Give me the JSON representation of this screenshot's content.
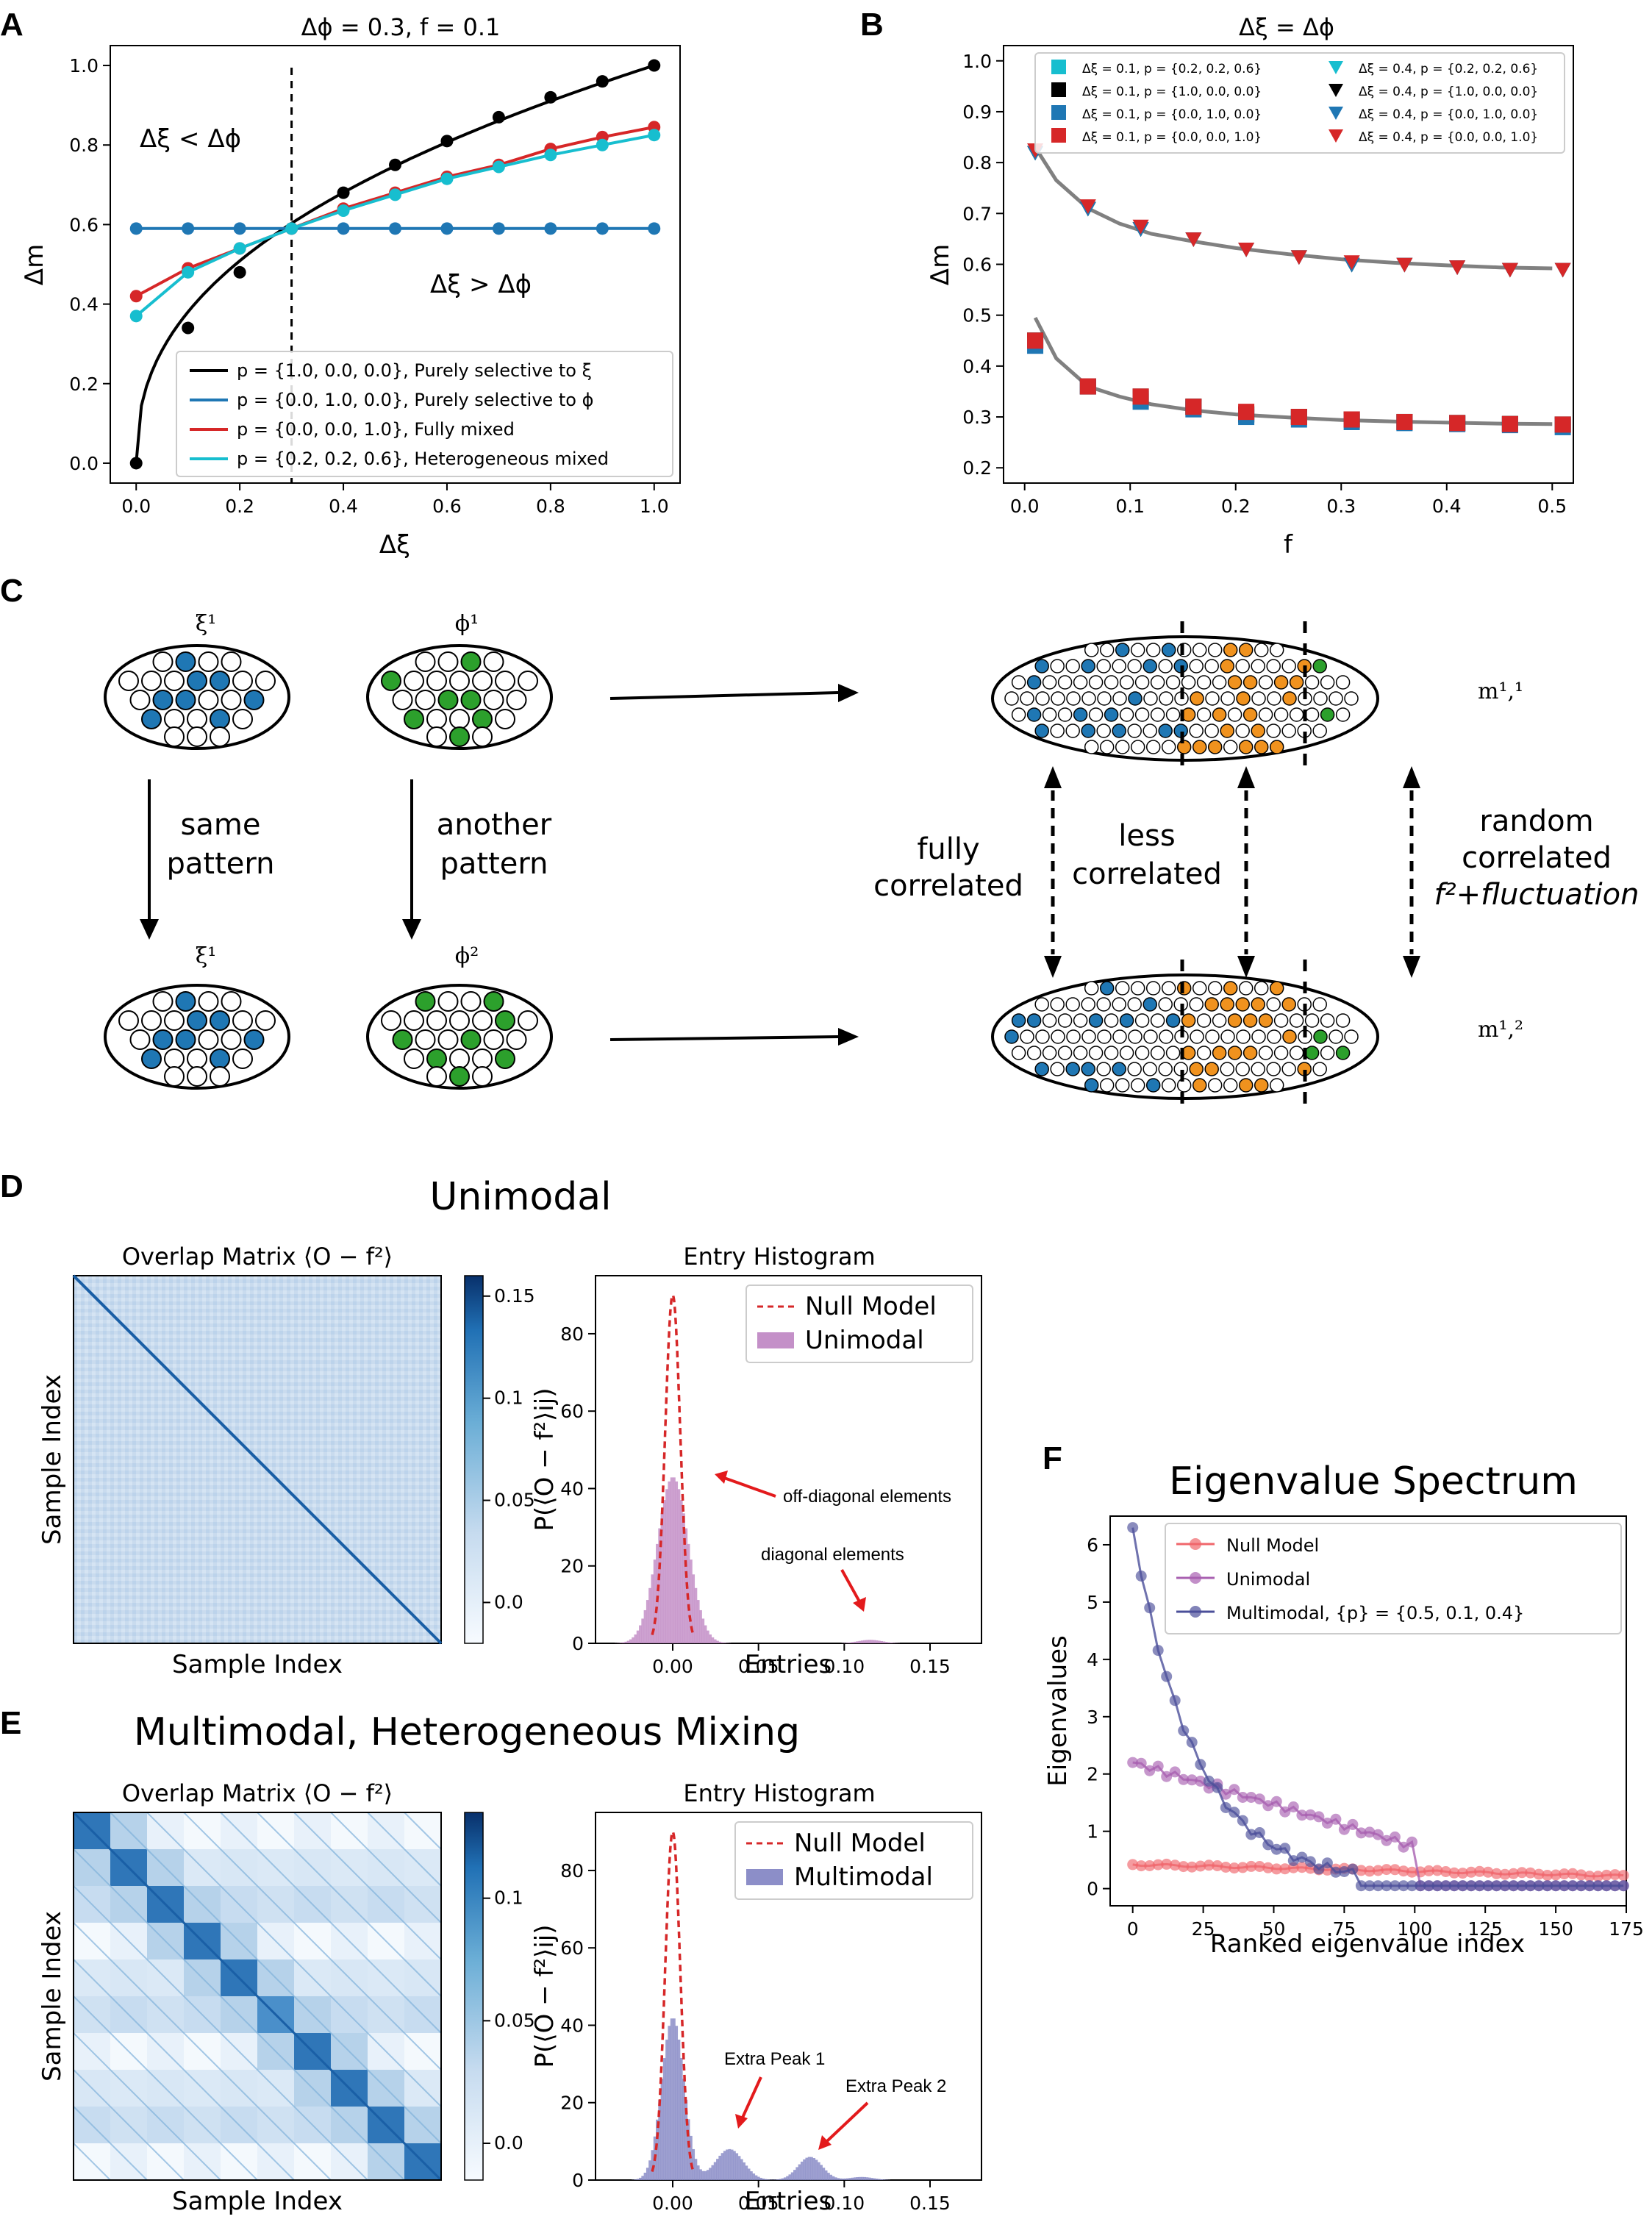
{
  "panels": {
    "A": "A",
    "B": "B",
    "C": "C",
    "D": "D",
    "E": "E",
    "F": "F"
  },
  "chart_data": [
    {
      "id": "A",
      "type": "line",
      "title": "Δϕ = 0.3, f = 0.1",
      "xlabel": "Δξ",
      "ylabel": "Δm",
      "xlim": [
        -0.05,
        1.05
      ],
      "ylim": [
        -0.05,
        1.05
      ],
      "xticks": [
        "0.0",
        "0.2",
        "0.4",
        "0.6",
        "0.8",
        "1.0"
      ],
      "yticks": [
        "0.0",
        "0.2",
        "0.4",
        "0.6",
        "0.8",
        "1.0"
      ],
      "x": [
        0.0,
        0.1,
        0.2,
        0.3,
        0.4,
        0.5,
        0.6,
        0.7,
        0.8,
        0.9,
        1.0
      ],
      "vline": 0.3,
      "annotations": [
        "Δξ < Δϕ",
        "Δξ > Δϕ"
      ],
      "legend_position": "lower-right",
      "series": [
        {
          "name": "p = {1.0, 0.0, 0.0}, Purely selective to ξ",
          "color": "#000000",
          "values": [
            0.0,
            0.34,
            0.48,
            0.59,
            0.68,
            0.75,
            0.81,
            0.87,
            0.92,
            0.96,
            1.0
          ]
        },
        {
          "name": "p = {0.0, 1.0, 0.0}, Purely selective to ϕ",
          "color": "#1f77b4",
          "values": [
            0.59,
            0.59,
            0.59,
            0.59,
            0.59,
            0.59,
            0.59,
            0.59,
            0.59,
            0.59,
            0.59
          ]
        },
        {
          "name": "p = {0.0, 0.0, 1.0}, Fully mixed",
          "color": "#d62728",
          "values": [
            0.42,
            0.49,
            0.54,
            0.59,
            0.64,
            0.68,
            0.72,
            0.75,
            0.79,
            0.82,
            0.845
          ]
        },
        {
          "name": "p = {0.2, 0.2, 0.6}, Heterogeneous mixed",
          "color": "#17becf",
          "values": [
            0.37,
            0.48,
            0.54,
            0.59,
            0.635,
            0.675,
            0.715,
            0.745,
            0.775,
            0.8,
            0.825
          ]
        }
      ]
    },
    {
      "id": "B",
      "type": "scatter",
      "title": "Δξ = Δϕ",
      "xlabel": "f",
      "ylabel": "Δm",
      "xlim": [
        -0.02,
        0.52
      ],
      "ylim": [
        0.17,
        1.03
      ],
      "xticks": [
        "0.0",
        "0.1",
        "0.2",
        "0.3",
        "0.4",
        "0.5"
      ],
      "yticks": [
        "0.2",
        "0.3",
        "0.4",
        "0.5",
        "0.6",
        "0.7",
        "0.8",
        "0.9",
        "1.0"
      ],
      "x": [
        0.01,
        0.06,
        0.11,
        0.16,
        0.21,
        0.26,
        0.31,
        0.36,
        0.41,
        0.46,
        0.51
      ],
      "legend_position": "top",
      "series": [
        {
          "name": "Δξ = 0.1, p = {0.2, 0.2, 0.6}",
          "color": "#17becf",
          "marker": "square",
          "values": [
            0.45,
            0.36,
            0.335,
            0.32,
            0.305,
            0.3,
            0.295,
            0.29,
            0.288,
            0.286,
            0.285
          ]
        },
        {
          "name": "Δξ = 0.1, p = {1.0, 0.0, 0.0}",
          "color": "#000000",
          "marker": "square",
          "values": [
            0.45,
            0.36,
            0.34,
            0.32,
            0.305,
            0.3,
            0.295,
            0.29,
            0.288,
            0.286,
            0.285
          ]
        },
        {
          "name": "Δξ = 0.1, p = {0.0, 1.0, 0.0}",
          "color": "#1f77b4",
          "marker": "square",
          "values": [
            0.44,
            0.36,
            0.33,
            0.315,
            0.3,
            0.295,
            0.29,
            0.288,
            0.286,
            0.284,
            0.28
          ]
        },
        {
          "name": "Δξ = 0.1, p = {0.0, 0.0, 1.0}",
          "color": "#d62728",
          "marker": "square",
          "values": [
            0.45,
            0.36,
            0.34,
            0.32,
            0.31,
            0.3,
            0.295,
            0.29,
            0.288,
            0.286,
            0.285
          ]
        },
        {
          "name": "Δξ = 0.4, p = {0.2, 0.2, 0.6}",
          "color": "#17becf",
          "marker": "triangle-down",
          "values": [
            0.82,
            0.71,
            0.67,
            0.65,
            0.63,
            0.615,
            0.6,
            0.6,
            0.595,
            0.59,
            0.59
          ]
        },
        {
          "name": "Δξ = 0.4, p = {1.0, 0.0, 0.0}",
          "color": "#000000",
          "marker": "triangle-down",
          "values": [
            0.82,
            0.71,
            0.67,
            0.65,
            0.63,
            0.615,
            0.6,
            0.6,
            0.595,
            0.59,
            0.59
          ]
        },
        {
          "name": "Δξ = 0.4, p = {0.0, 1.0, 0.0}",
          "color": "#1f77b4",
          "marker": "triangle-down",
          "values": [
            0.82,
            0.71,
            0.67,
            0.65,
            0.63,
            0.615,
            0.6,
            0.6,
            0.595,
            0.59,
            0.59
          ]
        },
        {
          "name": "Δξ = 0.4, p = {0.0, 0.0, 1.0}",
          "color": "#d62728",
          "marker": "triangle-down",
          "values": [
            0.825,
            0.715,
            0.675,
            0.65,
            0.63,
            0.615,
            0.605,
            0.6,
            0.595,
            0.59,
            0.59
          ]
        }
      ],
      "fit_curves": [
        {
          "color": "#808080",
          "x": [
            0.01,
            0.03,
            0.06,
            0.09,
            0.12,
            0.16,
            0.2,
            0.25,
            0.3,
            0.35,
            0.4,
            0.45,
            0.5
          ],
          "values": [
            0.83,
            0.765,
            0.71,
            0.68,
            0.66,
            0.645,
            0.632,
            0.62,
            0.61,
            0.603,
            0.598,
            0.594,
            0.592
          ]
        },
        {
          "color": "#808080",
          "x": [
            0.01,
            0.03,
            0.06,
            0.09,
            0.12,
            0.16,
            0.2,
            0.25,
            0.3,
            0.35,
            0.4,
            0.45,
            0.5
          ],
          "values": [
            0.495,
            0.415,
            0.36,
            0.34,
            0.325,
            0.313,
            0.305,
            0.299,
            0.294,
            0.291,
            0.289,
            0.287,
            0.286
          ]
        }
      ]
    },
    {
      "id": "D-histogram",
      "type": "histogram",
      "title": "Entry Histogram",
      "xlabel": "Entries",
      "ylabel": "P(⟨O − f²⟩ij)",
      "xlim": [
        -0.045,
        0.18
      ],
      "ylim": [
        0,
        95
      ],
      "xticks": [
        "0.00",
        "0.05",
        "0.10",
        "0.15"
      ],
      "yticks": [
        "0",
        "20",
        "40",
        "60",
        "80"
      ],
      "legend_position": "top-right",
      "series": [
        {
          "name": "Null Model",
          "style": "dashed-line",
          "color": "#d62728",
          "peak_x": 0.0,
          "peak": 90,
          "sigma": 0.0044
        },
        {
          "name": "Unimodal",
          "style": "filled",
          "color": "#c490c8",
          "peaks": [
            {
              "x": 0.0,
              "height": 43,
              "sigma": 0.009
            },
            {
              "x": 0.115,
              "height": 0.9,
              "sigma": 0.007
            }
          ]
        }
      ],
      "annotations": [
        "off-diagonal elements",
        "diagonal elements"
      ]
    },
    {
      "id": "E-histogram",
      "type": "histogram",
      "title": "Entry Histogram",
      "xlabel": "Entries",
      "ylabel": "P(⟨O − f²⟩ij)",
      "xlim": [
        -0.045,
        0.18
      ],
      "ylim": [
        0,
        95
      ],
      "xticks": [
        "0.00",
        "0.05",
        "0.10",
        "0.15"
      ],
      "yticks": [
        "0",
        "20",
        "40",
        "60",
        "80"
      ],
      "legend_position": "top-right",
      "series": [
        {
          "name": "Null Model",
          "style": "dashed-line",
          "color": "#d62728",
          "peak_x": 0.0,
          "peak": 90,
          "sigma": 0.0044
        },
        {
          "name": "Multimodal",
          "style": "filled",
          "color": "#8c8ec8",
          "peaks": [
            {
              "x": 0.0,
              "height": 42,
              "sigma": 0.0065
            },
            {
              "x": 0.033,
              "height": 8,
              "sigma": 0.008
            },
            {
              "x": 0.08,
              "height": 6,
              "sigma": 0.007
            },
            {
              "x": 0.11,
              "height": 0.8,
              "sigma": 0.007
            }
          ]
        }
      ],
      "annotations": [
        "Extra Peak 1",
        "Extra Peak 2"
      ]
    },
    {
      "id": "F",
      "type": "line",
      "title": "Eigenvalue Spectrum",
      "xlabel": "Ranked eigenvalue index",
      "ylabel": "Eigenvalues",
      "xlim": [
        -8,
        175
      ],
      "ylim": [
        -0.3,
        6.5
      ],
      "xticks": [
        "0",
        "25",
        "50",
        "75",
        "100",
        "125",
        "150",
        "175"
      ],
      "yticks": [
        "0",
        "1",
        "2",
        "3",
        "4",
        "5",
        "6"
      ],
      "legend_position": "top-right",
      "series": [
        {
          "name": "Null Model",
          "color": "#f0666b",
          "description": "values 0.42 at index 0, declining slowly to 0.22 at index 175, sampled every 3 indices"
        },
        {
          "name": "Unimodal",
          "color": "#a860b0",
          "description": "2.2 at index 0, decreasing to ~0.8 at index 99, then dropping to ~0.05 for indices 100-175"
        },
        {
          "name": "Multimodal, {p} = {0.5, 0.1, 0.4}",
          "color": "#4b4f9a",
          "description": "6.3 at index 0, fast decay to ~0.1 by index 80, near 0.05 afterwards"
        }
      ]
    }
  ],
  "overlap_D": {
    "title": "Overlap Matrix ⟨O − f²⟩",
    "xlabel": "Sample Index",
    "ylabel": "Sample Index",
    "colorbar_ticks": [
      "0.15",
      "0.1",
      "0.05",
      "0.0"
    ],
    "section_title": "Unimodal"
  },
  "overlap_E": {
    "title": "Overlap Matrix ⟨O − f²⟩",
    "xlabel": "Sample Index",
    "ylabel": "Sample Index",
    "colorbar_ticks": [
      "0.1",
      "0.05",
      "0.0"
    ],
    "section_title": "Multimodal, Heterogeneous Mixing"
  },
  "diagramC": {
    "xi1": "ξ¹",
    "phi1": "ϕ¹",
    "xi1b": "ξ¹",
    "phi2": "ϕ²",
    "same": [
      "same",
      "pattern"
    ],
    "another": [
      "another",
      "pattern"
    ],
    "fully": [
      "fully",
      "correlated"
    ],
    "less": [
      "less",
      "correlated"
    ],
    "random": [
      "random",
      "correlated",
      "f²+fluctuation"
    ],
    "m11": "m¹,¹",
    "m12": "m¹,²",
    "colors": {
      "xi": "#1f77b4",
      "phi": "#2ca02c",
      "mixed": "#f0921e"
    }
  }
}
